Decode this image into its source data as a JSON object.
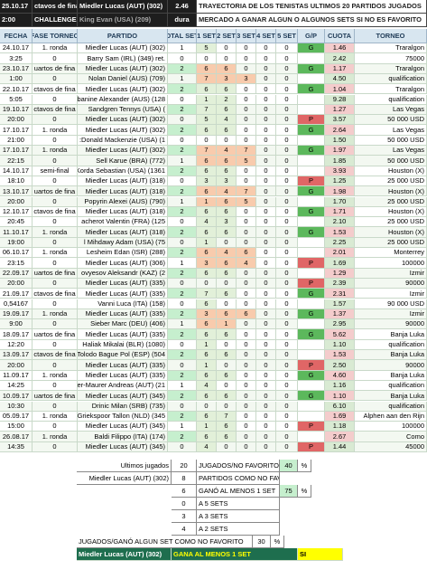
{
  "banner": {
    "rows": [
      [
        "25.10.17",
        "ctavos de fina",
        "Miedler Lucas (AUT) (302)",
        "2.46",
        "TRAYECTORIA DE LOS TENISTAS ULTIMOS 20 PARTIDOS JUGADOS"
      ],
      [
        "2:00",
        "CHALLENGER",
        "King Evan (USA) (209)",
        "dura",
        "MERCADO A GANAR ALGUN O ALGUNOS SETS SI NO ES FAVORITO"
      ]
    ]
  },
  "table": {
    "columns": [
      "FECHA",
      "FASE TORNEO",
      "PARTIDO",
      "OTAL SET",
      "1 SET",
      "2 SET",
      "3 SET",
      "4 SET",
      "5 SET",
      "G/P",
      "CUOTA",
      "TORNEO"
    ],
    "rows": [
      [
        "24.10.17",
        "1. ronda",
        "Miedler Lucas (AUT) (302)",
        "1",
        "5",
        "0",
        "0",
        "0",
        "0",
        "G",
        "1.46",
        "Traralgon"
      ],
      [
        "3:25",
        "0",
        "Barry Sam (IRL) (349) ret.",
        "0",
        "0",
        "0",
        "0",
        "0",
        "0",
        null,
        "2.42",
        "75000"
      ],
      [
        "23.10.17",
        "uartos de fina",
        "Miedler Lucas (AUT) (302)",
        "2",
        "6",
        "6",
        "0",
        "0",
        "0",
        "G",
        "1.17",
        "Traralgon"
      ],
      [
        "1:00",
        "0",
        "Nolan Daniel (AUS) (709)",
        "1",
        "7",
        "3",
        "3",
        "0",
        "0",
        null,
        "4.50",
        "qualification"
      ],
      [
        "22.10.17",
        "ctavos de fina",
        "Miedler Lucas (AUT) (302)",
        "2",
        "6",
        "6",
        "0",
        "0",
        "0",
        "G",
        "1.04",
        "Traralgon"
      ],
      [
        "5:05",
        "0",
        "banine Alexander (AUS) (128",
        "0",
        "1",
        "2",
        "0",
        "0",
        "0",
        null,
        "9.28",
        "qualification"
      ],
      [
        "19.10.17",
        "ctavos de fina",
        "Sandgren Tennys (USA) (",
        "2",
        "7",
        "6",
        "0",
        "0",
        "0",
        null,
        "1.27",
        "Las Vegas"
      ],
      [
        "20:00",
        "0",
        "Miedler Lucas (AUT) (302)",
        "0",
        "5",
        "4",
        "0",
        "0",
        "0",
        "P",
        "3.57",
        "50 000 USD"
      ],
      [
        "17.10.17",
        "1. ronda",
        "Miedler Lucas (AUT) (302)",
        "2",
        "6",
        "6",
        "0",
        "0",
        "0",
        "G",
        "2.64",
        "Las Vegas"
      ],
      [
        "21:00",
        "0",
        ":Donald Mackenzie (USA) (1",
        "0",
        "0",
        "0",
        "0",
        "0",
        "0",
        null,
        "1.50",
        "50 000 USD"
      ],
      [
        "17.10.17",
        "1. ronda",
        "Miedler Lucas (AUT) (302)",
        "2",
        "7",
        "4",
        "7",
        "0",
        "0",
        "G",
        "1.97",
        "Las Vegas"
      ],
      [
        "22:15",
        "0",
        "Sell Karue (BRA) (772)",
        "1",
        "6",
        "6",
        "5",
        "0",
        "0",
        null,
        "1.85",
        "50 000 USD"
      ],
      [
        "14.10.17",
        "semi-final",
        "Korda Sebastian (USA) (1361",
        "2",
        "6",
        "6",
        "0",
        "0",
        "0",
        null,
        "3.93",
        "Houston (X)"
      ],
      [
        "18:10",
        "0",
        "Miedler Lucas (AUT) (318)",
        "0",
        "3",
        "3",
        "0",
        "0",
        "0",
        "P",
        "1.25",
        "25 000 USD"
      ],
      [
        "13.10.17",
        "uartos de fina",
        "Miedler Lucas (AUT) (318)",
        "2",
        "6",
        "4",
        "7",
        "0",
        "0",
        "G",
        "1.98",
        "Houston (X)"
      ],
      [
        "20:00",
        "0",
        "Popyrin Alexei (AUS) (790)",
        "1",
        "1",
        "6",
        "5",
        "0",
        "0",
        null,
        "1.70",
        "25 000 USD"
      ],
      [
        "12.10.17",
        "ctavos de fina",
        "Miedler Lucas (AUT) (318)",
        "2",
        "6",
        "6",
        "0",
        "0",
        "0",
        "G",
        "1.71",
        "Houston (X)"
      ],
      [
        "20:45",
        "0",
        "acherot Valentin (FRA) (125",
        "0",
        "4",
        "3",
        "0",
        "0",
        "0",
        null,
        "2.10",
        "25 000 USD"
      ],
      [
        "11.10.17",
        "1. ronda",
        "Miedler Lucas (AUT) (318)",
        "2",
        "6",
        "6",
        "0",
        "0",
        "0",
        "G",
        "1.53",
        "Houston (X)"
      ],
      [
        "19:00",
        "0",
        "l Mihdawy Adam (USA) (75",
        "0",
        "1",
        "0",
        "0",
        "0",
        "0",
        null,
        "2.25",
        "25 000 USD"
      ],
      [
        "06.10.17",
        "1. ronda",
        "Lesheim Edan (ISR) (288)",
        "2",
        "6",
        "4",
        "6",
        "0",
        "0",
        null,
        "2.01",
        "Monterrey"
      ],
      [
        "23:15",
        "0",
        "Miedler Lucas (AUT) (306)",
        "1",
        "3",
        "6",
        "4",
        "0",
        "0",
        "P",
        "1.69",
        "100000"
      ],
      [
        "22.09.17",
        "uartos de fina",
        "ovyesov Aleksandr (KAZ) (2",
        "2",
        "6",
        "6",
        "0",
        "0",
        "0",
        null,
        "1.29",
        "Izmir"
      ],
      [
        "20:00",
        "0",
        "Miedler Lucas (AUT) (335)",
        "0",
        "0",
        "0",
        "0",
        "0",
        "0",
        "P",
        "2.39",
        "90000"
      ],
      [
        "21.09.17",
        "ctavos de fina",
        "Miedler Lucas (AUT) (335)",
        "2",
        "7",
        "6",
        "0",
        "0",
        "0",
        "G",
        "2.31",
        "Izmir"
      ],
      [
        "0,54167",
        "0",
        "Vanni Luca (ITA) (158)",
        "0",
        "6",
        "0",
        "0",
        "0",
        "0",
        null,
        "1.57",
        "90 000 USD"
      ],
      [
        "19.09.17",
        "1. ronda",
        "Miedler Lucas (AUT) (335)",
        "2",
        "3",
        "6",
        "6",
        "0",
        "0",
        "G",
        "1.37",
        "Izmir"
      ],
      [
        "9:00",
        "0",
        "Sieber Marc (DEU) (406)",
        "1",
        "6",
        "1",
        "0",
        "0",
        "0",
        null,
        "2.95",
        "90000"
      ],
      [
        "18.09.17",
        "uartos de fina",
        "Miedler Lucas (AUT) (335)",
        "2",
        "6",
        "6",
        "0",
        "0",
        "0",
        "G",
        "5.62",
        "Banja Luka"
      ],
      [
        "12:20",
        "0",
        "Haliak Mikalai (BLR) (1080)",
        "0",
        "1",
        "0",
        "0",
        "0",
        "0",
        null,
        "1.10",
        "qualification"
      ],
      [
        "13.09.17",
        "ctavos de fina",
        "Tolodo Bague Pol (ESP) (504",
        "2",
        "6",
        "6",
        "0",
        "0",
        "0",
        null,
        "1.53",
        "Banja Luka"
      ],
      [
        "20:00",
        "0",
        "Miedler Lucas (AUT) (335)",
        "0",
        "1",
        "0",
        "0",
        "0",
        "0",
        "P",
        "2.50",
        "90000"
      ],
      [
        "11.09.17",
        "1. ronda",
        "Miedler Lucas (AUT) (335)",
        "2",
        "6",
        "6",
        "0",
        "0",
        "0",
        "G",
        "4.60",
        "Banja Luka"
      ],
      [
        "14:25",
        "0",
        "der-Maurer Andreas (AUT) (21",
        "1",
        "4",
        "0",
        "0",
        "0",
        "0",
        null,
        "1.16",
        "qualification"
      ],
      [
        "10.09.17",
        "uartos de fina",
        "Miedler Lucas (AUT) (345)",
        "2",
        "6",
        "6",
        "0",
        "0",
        "0",
        "G",
        "1.10",
        "Banja Luka"
      ],
      [
        "10:30",
        "0",
        "Drinic Milan (SRB) (735)",
        "0",
        "0",
        "0",
        "0",
        "0",
        "0",
        null,
        "6.10",
        "qualification"
      ],
      [
        "05.09.17",
        "1. ronda",
        "Griekspoor Tallon (NLD) (345",
        "2",
        "6",
        "7",
        "0",
        "0",
        "0",
        null,
        "1.69",
        "Alphen aan den Rijn"
      ],
      [
        "15:00",
        "0",
        "Miedler Lucas (AUT) (345)",
        "1",
        "1",
        "6",
        "0",
        "0",
        "0",
        "P",
        "1.18",
        "100000"
      ],
      [
        "26.08.17",
        "1. ronda",
        "Baldi Filippo (ITA) (174)",
        "2",
        "6",
        "6",
        "0",
        "0",
        "0",
        null,
        "2.67",
        "Como"
      ],
      [
        "14:35",
        "0",
        "Miedler Lucas (AUT) (345)",
        "0",
        "4",
        "0",
        "0",
        "0",
        "0",
        "P",
        "1.44",
        "45000"
      ]
    ]
  },
  "summary": {
    "rows": [
      [
        "Ultimos jugados",
        "20",
        "JUGADOS/NO FAVORITO",
        "40",
        "%"
      ],
      [
        "Miedler Lucas (AUT) (302)",
        "8",
        "PARTIDOS COMO NO FAVORITO"
      ],
      [
        "6",
        "GANÓ AL MENOS 1 SET",
        "75",
        "%"
      ],
      [
        "0",
        "A 5 SETS"
      ],
      [
        "3",
        "A 3 SETS"
      ],
      [
        "4",
        "A 2 SETS"
      ],
      [
        "JUGADOS/GANÓ ALGUN SET COMO NO FAVORITO",
        "30",
        "%"
      ],
      [
        "Miedler Lucas (AUT) (302)",
        "GANA AL MENOS 1 SET",
        "SI"
      ]
    ]
  }
}
